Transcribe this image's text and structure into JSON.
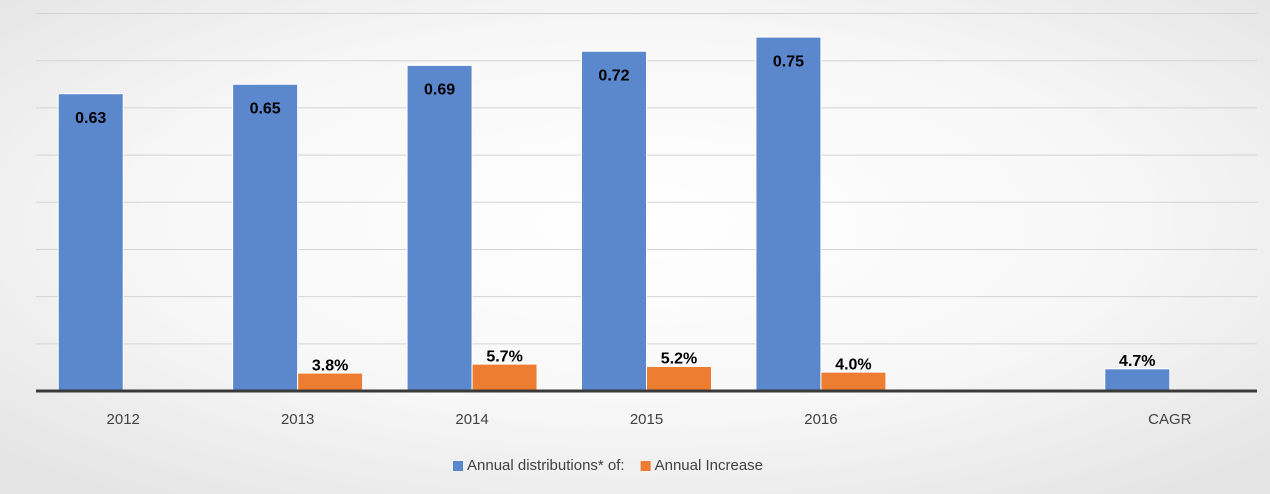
{
  "chart_data": {
    "type": "bar",
    "categories": [
      "2012",
      "2013",
      "2014",
      "2015",
      "2016",
      null,
      "CAGR"
    ],
    "series": [
      {
        "name": "Annual distributions* of:",
        "color": "#5b87cd",
        "values": [
          0.63,
          0.65,
          0.69,
          0.72,
          0.75,
          null,
          0.047
        ],
        "value_labels": [
          "0.63",
          "0.65",
          "0.69",
          "0.72",
          "0.75",
          null,
          "4.7%"
        ]
      },
      {
        "name": "Annual Increase",
        "color": "#ed7d31",
        "values": [
          null,
          0.038,
          0.057,
          0.052,
          0.04,
          null,
          null
        ],
        "value_labels": [
          null,
          "3.8%",
          "5.7%",
          "5.2%",
          "4.0%",
          null,
          null
        ]
      }
    ],
    "ylim": [
      0,
      0.8
    ],
    "yticks": [
      0,
      0.1,
      0.2,
      0.3,
      0.4,
      0.5,
      0.6,
      0.7,
      0.8
    ],
    "grid": true,
    "legend": "bottom"
  }
}
